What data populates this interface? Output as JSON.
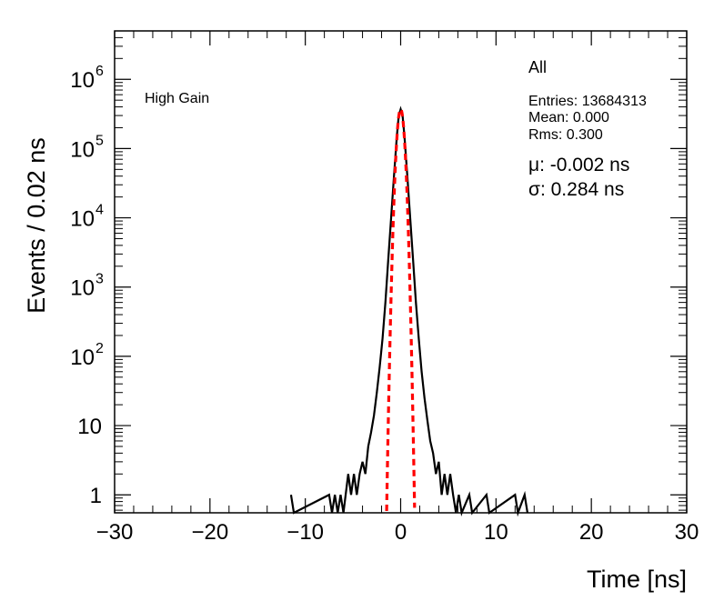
{
  "chart_data": {
    "type": "histogram",
    "xlabel": "Time [ns]",
    "ylabel": "Events / 0.02 ns",
    "xlim": [
      -30,
      30
    ],
    "ylim": [
      0.55,
      5000000
    ],
    "yscale": "log",
    "x_ticks": [
      -30,
      -20,
      -10,
      0,
      10,
      20,
      30
    ],
    "x_tick_labels": [
      "−30",
      "−20",
      "−10",
      "0",
      "10",
      "20",
      "30"
    ],
    "y_ticks": [
      {
        "value": 1,
        "label": "1",
        "exp": ""
      },
      {
        "value": 10,
        "label": "10",
        "exp": ""
      },
      {
        "value": 100,
        "label": "10",
        "exp": "2"
      },
      {
        "value": 1000,
        "label": "10",
        "exp": "3"
      },
      {
        "value": 10000,
        "label": "10",
        "exp": "4"
      },
      {
        "value": 100000,
        "label": "10",
        "exp": "5"
      },
      {
        "value": 1000000,
        "label": "10",
        "exp": "6"
      }
    ],
    "series": [
      {
        "style": "black-histogram",
        "points": [
          [
            -11.5,
            1
          ],
          [
            -11.2,
            0.55
          ],
          [
            -7.5,
            1
          ],
          [
            -7.2,
            0.55
          ],
          [
            -6.9,
            1
          ],
          [
            -6.6,
            0.55
          ],
          [
            -6.3,
            1
          ],
          [
            -6.0,
            0.55
          ],
          [
            -5.5,
            2
          ],
          [
            -5.2,
            1
          ],
          [
            -4.9,
            2
          ],
          [
            -4.6,
            1
          ],
          [
            -4.3,
            2
          ],
          [
            -4.0,
            3
          ],
          [
            -3.7,
            2
          ],
          [
            -3.4,
            5
          ],
          [
            -3.1,
            8
          ],
          [
            -2.8,
            14
          ],
          [
            -2.5,
            30
          ],
          [
            -2.2,
            70
          ],
          [
            -1.9,
            180
          ],
          [
            -1.6,
            600
          ],
          [
            -1.3,
            2500
          ],
          [
            -1.0,
            10000
          ],
          [
            -0.7,
            40000
          ],
          [
            -0.4,
            150000
          ],
          [
            -0.2,
            300000
          ],
          [
            0.0,
            370000
          ],
          [
            0.2,
            300000
          ],
          [
            0.4,
            150000
          ],
          [
            0.7,
            40000
          ],
          [
            1.0,
            10000
          ],
          [
            1.3,
            2500
          ],
          [
            1.6,
            600
          ],
          [
            1.9,
            180
          ],
          [
            2.2,
            60
          ],
          [
            2.5,
            25
          ],
          [
            2.8,
            12
          ],
          [
            3.1,
            6
          ],
          [
            3.4,
            4
          ],
          [
            3.7,
            2
          ],
          [
            4.0,
            3
          ],
          [
            4.3,
            1
          ],
          [
            4.6,
            2
          ],
          [
            4.9,
            1
          ],
          [
            5.2,
            2
          ],
          [
            5.5,
            1
          ],
          [
            5.8,
            0.55
          ],
          [
            6.1,
            1
          ],
          [
            6.4,
            0.55
          ],
          [
            7.2,
            1
          ],
          [
            7.5,
            0.55
          ],
          [
            9.0,
            1
          ],
          [
            9.3,
            0.55
          ],
          [
            12.0,
            1
          ],
          [
            12.3,
            0.55
          ],
          [
            13.0,
            1
          ],
          [
            13.3,
            0.55
          ]
        ]
      },
      {
        "style": "red-gaussian-fit",
        "mean": -0.002,
        "sigma": 0.284,
        "amplitude": 370000
      }
    ],
    "annotations": {
      "gain_label": "High Gain",
      "stats_title": "All",
      "entries": "Entries: 13684313",
      "mean": "Mean: 0.000",
      "rms": "Rms: 0.300",
      "mu": "μ: -0.002 ns",
      "sigma": "σ: 0.284 ns"
    },
    "grid": false,
    "legend": "none"
  },
  "colors": {
    "axis": "#000000",
    "histogram": "#000000",
    "fit": "#ff0000"
  }
}
